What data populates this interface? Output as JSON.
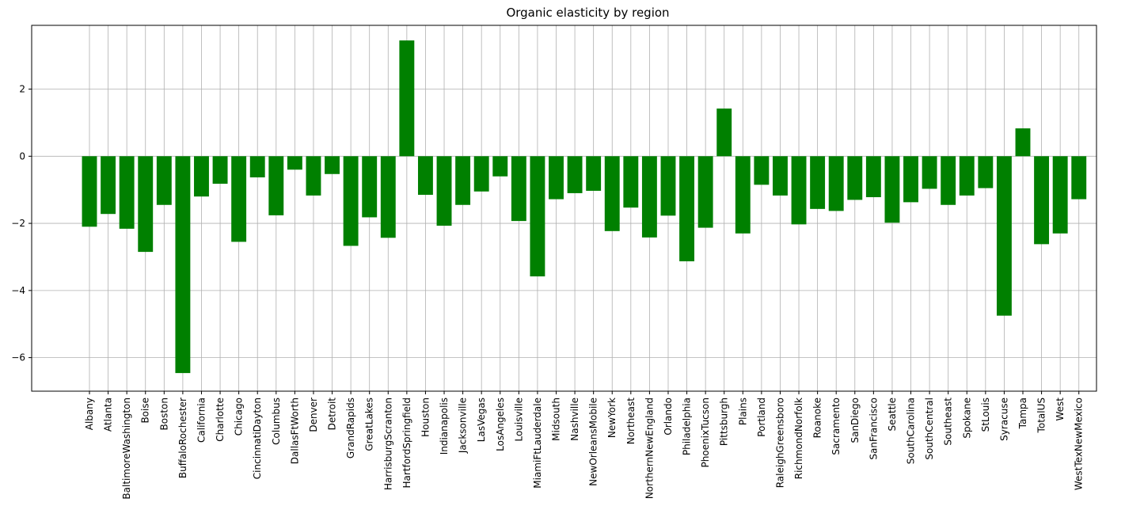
{
  "chart_data": {
    "type": "bar",
    "title": "Organic elasticity by region",
    "xlabel": "",
    "ylabel": "",
    "bar_color": "#008000",
    "grid": true,
    "ylim": [
      -7.0,
      3.9
    ],
    "yticks": [
      -6,
      -4,
      -2,
      0,
      2
    ],
    "ytick_labels": [
      "−6",
      "−4",
      "−2",
      "0",
      "2"
    ],
    "categories": [
      "Albany",
      "Atlanta",
      "BaltimoreWashington",
      "Boise",
      "Boston",
      "BuffaloRochester",
      "California",
      "Charlotte",
      "Chicago",
      "CincinnatiDayton",
      "Columbus",
      "DallasFtWorth",
      "Denver",
      "Detroit",
      "GrandRapids",
      "GreatLakes",
      "HarrisburgScranton",
      "HartfordSpringfield",
      "Houston",
      "Indianapolis",
      "Jacksonville",
      "LasVegas",
      "LosAngeles",
      "Louisville",
      "MiamiFtLauderdale",
      "Midsouth",
      "Nashville",
      "NewOrleansMobile",
      "NewYork",
      "Northeast",
      "NorthernNewEngland",
      "Orlando",
      "Philadelphia",
      "PhoenixTucson",
      "Pittsburgh",
      "Plains",
      "Portland",
      "RaleighGreensboro",
      "RichmondNorfolk",
      "Roanoke",
      "Sacramento",
      "SanDiego",
      "SanFrancisco",
      "Seattle",
      "SouthCarolina",
      "SouthCentral",
      "Southeast",
      "Spokane",
      "StLouis",
      "Syracuse",
      "Tampa",
      "TotalUS",
      "West",
      "WestTexNewMexico"
    ],
    "values": [
      -2.1,
      -1.72,
      -2.16,
      -2.85,
      -1.45,
      -6.46,
      -1.2,
      -0.82,
      -2.55,
      -0.63,
      -1.76,
      -0.4,
      -1.17,
      -0.53,
      -2.67,
      -1.82,
      -2.43,
      3.45,
      -1.15,
      -2.07,
      -1.45,
      -1.05,
      -0.6,
      -1.93,
      -3.58,
      -1.28,
      -1.1,
      -1.03,
      -2.23,
      -1.53,
      -2.42,
      -1.77,
      -3.13,
      -2.13,
      1.42,
      -2.3,
      -0.85,
      -1.17,
      -2.03,
      -1.57,
      -1.63,
      -1.3,
      -1.22,
      -1.98,
      -1.37,
      -0.97,
      -1.45,
      -1.17,
      -0.95,
      -4.75,
      0.83,
      -2.62,
      -2.3,
      -1.28
    ]
  }
}
